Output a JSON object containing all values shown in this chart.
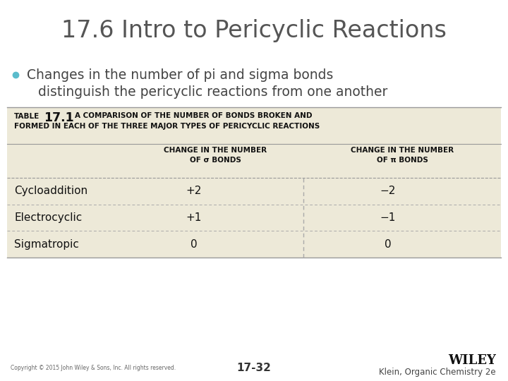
{
  "title": "17.6 Intro to Pericyclic Reactions",
  "bullet_line1": "Changes in the number of pi and sigma bonds",
  "bullet_line2": "distinguish the pericyclic reactions from one another",
  "table_label": "TABLE",
  "table_number": "17.1",
  "table_title_line1": "A COMPARISON OF THE NUMBER OF BONDS BROKEN AND",
  "table_title_line2": "FORMED IN EACH OF THE THREE MAJOR TYPES OF PERICYCLIC REACTIONS",
  "col1_header_line1": "CHANGE IN THE NUMBER",
  "col1_header_line2": "OF σ BONDS",
  "col2_header_line1": "CHANGE IN THE NUMBER",
  "col2_header_line2": "OF π BONDS",
  "rows": [
    [
      "Cycloaddition",
      "+2",
      "−2"
    ],
    [
      "Electrocyclic",
      "+1",
      "−1"
    ],
    [
      "Sigmatropic",
      "0",
      "0"
    ]
  ],
  "table_bg": "#ede9d8",
  "white_bg": "#ffffff",
  "title_color": "#555555",
  "bullet_color": "#444444",
  "bullet_dot_color": "#5bbccc",
  "table_text_dark": "#111111",
  "footer_left": "Copyright © 2015 John Wiley & Sons, Inc. All rights reserved.",
  "footer_center": "17-32",
  "footer_right_top": "WILEY",
  "footer_right_bottom": "Klein, Organic Chemistry 2e",
  "line_color": "#aaaaaa",
  "dashed_color": "#aaaaaa"
}
